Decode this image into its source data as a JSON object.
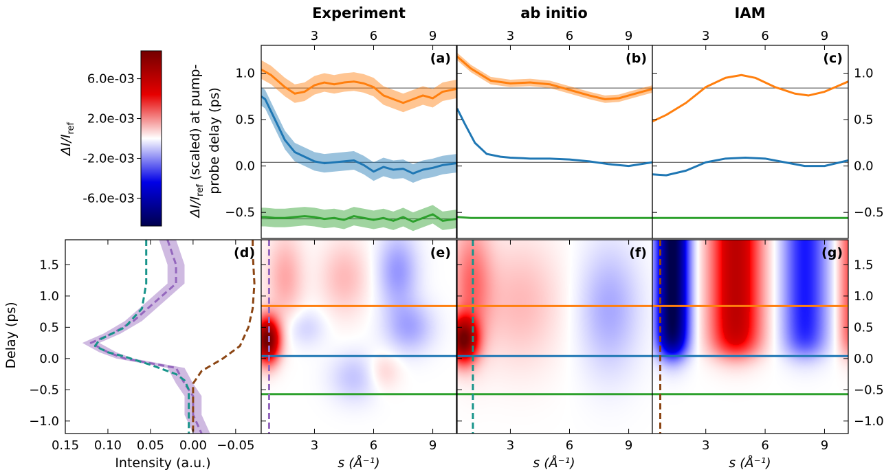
{
  "titles": {
    "experiment": "Experiment",
    "ab_initio": "ab initio",
    "iam": "IAM"
  },
  "panel_letters": [
    "(a)",
    "(b)",
    "(c)",
    "(d)",
    "(e)",
    "(f)",
    "(g)"
  ],
  "labels": {
    "top_ylabel_line1": "ΔI/I",
    "top_ylabel_sub": "ref",
    "top_ylabel_rest1": " (scaled) at pump-",
    "top_ylabel_line2": "probe delay (ps)",
    "delay_ylabel": "Delay (ps)",
    "intensity_xlabel": "Intensity (a.u.)",
    "s_xlabel": "s (Å⁻¹)",
    "colorbar_label_main": "ΔI/I",
    "colorbar_label_sub": "ref"
  },
  "colorbar": {
    "ticks": [
      "6.0e-03",
      "2.0e-03",
      "-2.0e-03",
      "-6.0e-03"
    ],
    "values": [
      0.006,
      0.002,
      -0.002,
      -0.006
    ],
    "range": [
      -0.0088,
      0.0088
    ],
    "colors": [
      "#00004d",
      "#0000e6",
      "#ffffff",
      "#e60000",
      "#730000"
    ]
  },
  "colors": {
    "orange": "#ff7f0e",
    "blue": "#1f77b4",
    "green": "#2ca02c",
    "purple": "#9467bd",
    "teal": "#17948a",
    "brown": "#8b4513"
  },
  "chart_data": [
    {
      "id": "a",
      "type": "line",
      "panel": "top",
      "title": "Experiment",
      "xlim": [
        0.3,
        10.2
      ],
      "ylim": [
        -0.78,
        1.3
      ],
      "xticks": [
        3,
        6,
        9
      ],
      "yticks": [
        -0.5,
        0.0,
        0.5,
        1.0
      ],
      "ref_lines": [
        0.84,
        0.04,
        -0.57
      ],
      "series": [
        {
          "color": "orange",
          "band": 0.1,
          "x": [
            0.3,
            0.8,
            1.5,
            2.0,
            2.5,
            3.0,
            3.5,
            4.0,
            4.5,
            5.0,
            5.5,
            6.0,
            6.5,
            7.0,
            7.5,
            8.0,
            8.5,
            9.0,
            9.5,
            10.2
          ],
          "y": [
            1.04,
            0.98,
            0.85,
            0.78,
            0.8,
            0.87,
            0.9,
            0.88,
            0.9,
            0.91,
            0.89,
            0.85,
            0.76,
            0.72,
            0.68,
            0.72,
            0.76,
            0.73,
            0.8,
            0.83
          ]
        },
        {
          "color": "blue",
          "band": 0.1,
          "x": [
            0.3,
            0.5,
            1.0,
            1.5,
            2.0,
            2.5,
            3.0,
            3.5,
            4.0,
            4.5,
            5.0,
            5.5,
            6.0,
            6.5,
            7.0,
            7.5,
            8.0,
            8.5,
            9.0,
            9.5,
            10.2
          ],
          "y": [
            0.75,
            0.72,
            0.5,
            0.28,
            0.15,
            0.1,
            0.05,
            0.03,
            0.04,
            0.05,
            0.06,
            0.01,
            -0.06,
            -0.01,
            -0.04,
            -0.03,
            -0.08,
            -0.04,
            -0.02,
            0.01,
            0.03
          ]
        },
        {
          "color": "green",
          "band": 0.1,
          "x": [
            0.3,
            0.5,
            1.0,
            1.5,
            2.0,
            2.5,
            3.0,
            3.5,
            4.0,
            4.5,
            5.0,
            5.5,
            6.0,
            6.5,
            7.0,
            7.5,
            8.0,
            8.5,
            9.0,
            9.5,
            10.2
          ],
          "y": [
            -0.55,
            -0.55,
            -0.56,
            -0.56,
            -0.55,
            -0.54,
            -0.55,
            -0.57,
            -0.56,
            -0.58,
            -0.54,
            -0.56,
            -0.58,
            -0.56,
            -0.59,
            -0.55,
            -0.6,
            -0.56,
            -0.52,
            -0.59,
            -0.57
          ]
        }
      ]
    },
    {
      "id": "b",
      "type": "line",
      "panel": "top",
      "title": "ab initio",
      "xlim": [
        0.3,
        10.2
      ],
      "ylim": [
        -0.78,
        1.3
      ],
      "xticks": [
        3,
        6,
        9
      ],
      "yticks": [
        -0.5,
        0.0,
        0.5,
        1.0
      ],
      "ref_lines": [
        0.84,
        0.04
      ],
      "series": [
        {
          "color": "orange",
          "band": 0.04,
          "x": [
            0.3,
            1.0,
            2.0,
            3.0,
            4.0,
            5.0,
            6.0,
            7.0,
            7.8,
            8.5,
            9.0,
            10.2
          ],
          "y": [
            1.18,
            1.05,
            0.92,
            0.89,
            0.9,
            0.88,
            0.82,
            0.76,
            0.72,
            0.73,
            0.76,
            0.83
          ]
        },
        {
          "color": "blue",
          "band": 0,
          "x": [
            0.3,
            0.7,
            1.2,
            1.8,
            2.5,
            3.0,
            4.0,
            5.0,
            6.0,
            7.0,
            8.0,
            9.0,
            10.2
          ],
          "y": [
            0.62,
            0.45,
            0.25,
            0.13,
            0.1,
            0.09,
            0.08,
            0.08,
            0.07,
            0.05,
            0.02,
            0.0,
            0.04
          ]
        },
        {
          "color": "green",
          "band": 0,
          "x": [
            0.3,
            1.0,
            3.0,
            6.0,
            10.2
          ],
          "y": [
            -0.55,
            -0.56,
            -0.56,
            -0.56,
            -0.56
          ]
        }
      ]
    },
    {
      "id": "c",
      "type": "line",
      "panel": "top",
      "title": "IAM",
      "xlim": [
        0.3,
        10.2
      ],
      "ylim": [
        -0.78,
        1.3
      ],
      "xticks": [
        3,
        6,
        9
      ],
      "yticks": [
        -0.5,
        0.0,
        0.5,
        1.0
      ],
      "ref_lines": [
        0.84,
        0.04
      ],
      "series": [
        {
          "color": "orange",
          "band": 0,
          "x": [
            0.3,
            1.0,
            2.0,
            3.0,
            4.0,
            4.8,
            5.5,
            6.5,
            7.5,
            8.2,
            9.0,
            10.2
          ],
          "y": [
            0.48,
            0.55,
            0.68,
            0.85,
            0.95,
            0.98,
            0.95,
            0.85,
            0.78,
            0.76,
            0.8,
            0.91
          ]
        },
        {
          "color": "blue",
          "band": 0,
          "x": [
            0.3,
            1.0,
            2.0,
            3.0,
            4.0,
            5.0,
            6.0,
            7.0,
            8.0,
            9.0,
            10.2
          ],
          "y": [
            -0.09,
            -0.1,
            -0.05,
            0.04,
            0.08,
            0.09,
            0.08,
            0.04,
            0.0,
            0.0,
            0.06
          ]
        },
        {
          "color": "green",
          "band": 0,
          "x": [
            0.3,
            3.0,
            6.0,
            10.2
          ],
          "y": [
            -0.56,
            -0.56,
            -0.56,
            -0.56
          ]
        }
      ]
    },
    {
      "id": "d",
      "type": "line",
      "panel": "left",
      "xlabel": "Intensity (a.u.)",
      "ylabel": "Delay (ps)",
      "xlim": [
        0.15,
        -0.08
      ],
      "ylim": [
        -1.2,
        1.9
      ],
      "xticks": [
        0.15,
        0.1,
        0.05,
        0.0,
        -0.05
      ],
      "xticklabels": [
        "0.15",
        "0.10",
        "0.05",
        "0.00",
        "−0.05"
      ],
      "yticks": [
        -1.0,
        -0.5,
        0.0,
        0.5,
        1.0,
        1.5
      ],
      "series": [
        {
          "color": "purple",
          "dash": true,
          "band": 0.01,
          "y": [
            1.9,
            1.5,
            1.2,
            0.9,
            0.6,
            0.4,
            0.25,
            0.1,
            0.0,
            -0.15,
            -0.4,
            -0.6,
            -0.9,
            -1.2
          ],
          "x": [
            0.03,
            0.02,
            0.02,
            0.045,
            0.07,
            0.095,
            0.12,
            0.1,
            0.08,
            0.02,
            0.01,
            0.0,
            0.0,
            -0.01
          ]
        },
        {
          "color": "teal",
          "dash": true,
          "band": 0,
          "y": [
            1.9,
            1.2,
            0.8,
            0.5,
            0.3,
            0.2,
            0.1,
            0.03,
            -0.1,
            -0.25,
            -0.35,
            -0.5,
            -0.8,
            -1.2
          ],
          "x": [
            0.055,
            0.055,
            0.06,
            0.08,
            0.11,
            0.115,
            0.1,
            0.08,
            0.05,
            0.02,
            0.01,
            0.005,
            0.005,
            0.005
          ]
        },
        {
          "color": "brown",
          "dash": true,
          "band": 0,
          "y": [
            1.9,
            1.7,
            1.2,
            0.8,
            0.5,
            0.2,
            0.0,
            -0.2,
            -0.4,
            -0.6,
            -0.8,
            -1.2
          ],
          "x": [
            -0.07,
            -0.07,
            -0.072,
            -0.07,
            -0.065,
            -0.055,
            -0.035,
            -0.01,
            0.0,
            0.0,
            0.0,
            0.0
          ]
        }
      ]
    },
    {
      "id": "e",
      "type": "heatmap",
      "panel": "bottom",
      "source": "Experiment",
      "xlabel": "s (Å⁻¹)",
      "xlim": [
        0.3,
        10.2
      ],
      "ylim": [
        -1.2,
        1.9
      ],
      "xticks": [
        3,
        6,
        9
      ],
      "hlines": [
        {
          "y": 0.84,
          "color": "orange"
        },
        {
          "y": 0.04,
          "color": "blue"
        },
        {
          "y": -0.57,
          "color": "green"
        }
      ],
      "vline": {
        "x": 0.7,
        "color": "purple"
      },
      "blobs": [
        {
          "x": 0.6,
          "y": 0.3,
          "rx": 0.6,
          "ry": 0.35,
          "v": 0.009
        },
        {
          "x": 1.5,
          "y": 1.3,
          "rx": 0.9,
          "ry": 0.7,
          "v": 0.0015
        },
        {
          "x": 4.5,
          "y": 1.3,
          "rx": 1.2,
          "ry": 0.6,
          "v": 0.0012
        },
        {
          "x": 7.2,
          "y": 1.4,
          "rx": 1.0,
          "ry": 0.6,
          "v": -0.0018
        },
        {
          "x": 7.8,
          "y": 0.5,
          "rx": 1.2,
          "ry": 0.4,
          "v": -0.0015
        },
        {
          "x": 2.5,
          "y": 0.5,
          "rx": 1.0,
          "ry": 0.3,
          "v": -0.0008
        },
        {
          "x": 5.0,
          "y": -0.3,
          "rx": 1.2,
          "ry": 0.4,
          "v": -0.001
        },
        {
          "x": 6.5,
          "y": -0.2,
          "rx": 0.8,
          "ry": 0.3,
          "v": 0.0008
        }
      ]
    },
    {
      "id": "f",
      "type": "heatmap",
      "panel": "bottom",
      "source": "ab initio",
      "xlabel": "s (Å⁻¹)",
      "xlim": [
        0.3,
        10.2
      ],
      "ylim": [
        -1.2,
        1.9
      ],
      "xticks": [
        3,
        6,
        9
      ],
      "hlines": [
        {
          "y": 0.84,
          "color": "orange"
        },
        {
          "y": 0.04,
          "color": "blue"
        },
        {
          "y": -0.57,
          "color": "green"
        }
      ],
      "vline": {
        "x": 1.1,
        "color": "teal"
      },
      "blobs": [
        {
          "x": 0.6,
          "y": 0.3,
          "rx": 0.7,
          "ry": 0.35,
          "v": 0.008
        },
        {
          "x": 1.0,
          "y": 1.2,
          "rx": 1.0,
          "ry": 1.0,
          "v": 0.0025
        },
        {
          "x": 3.5,
          "y": 0.9,
          "rx": 2.0,
          "ry": 1.0,
          "v": 0.0012
        },
        {
          "x": 8.0,
          "y": 0.8,
          "rx": 1.5,
          "ry": 1.0,
          "v": -0.0015
        }
      ]
    },
    {
      "id": "g",
      "type": "heatmap",
      "panel": "bottom",
      "source": "IAM",
      "xlabel": "s (Å⁻¹)",
      "xlim": [
        0.3,
        10.2
      ],
      "ylim": [
        -1.2,
        1.9
      ],
      "xticks": [
        3,
        6,
        9
      ],
      "hlines": [
        {
          "y": 0.84,
          "color": "orange"
        },
        {
          "y": 0.04,
          "color": "blue"
        },
        {
          "y": -0.57,
          "color": "green"
        }
      ],
      "vline": {
        "x": 0.7,
        "color": "brown"
      },
      "bands": [
        {
          "x": 1.3,
          "w": 1.0,
          "v": -0.009
        },
        {
          "x": 4.5,
          "w": 1.6,
          "v": 0.006
        },
        {
          "x": 8.0,
          "w": 1.4,
          "v": -0.004
        },
        {
          "x": 10.3,
          "w": 0.8,
          "v": 0.003
        }
      ]
    }
  ]
}
